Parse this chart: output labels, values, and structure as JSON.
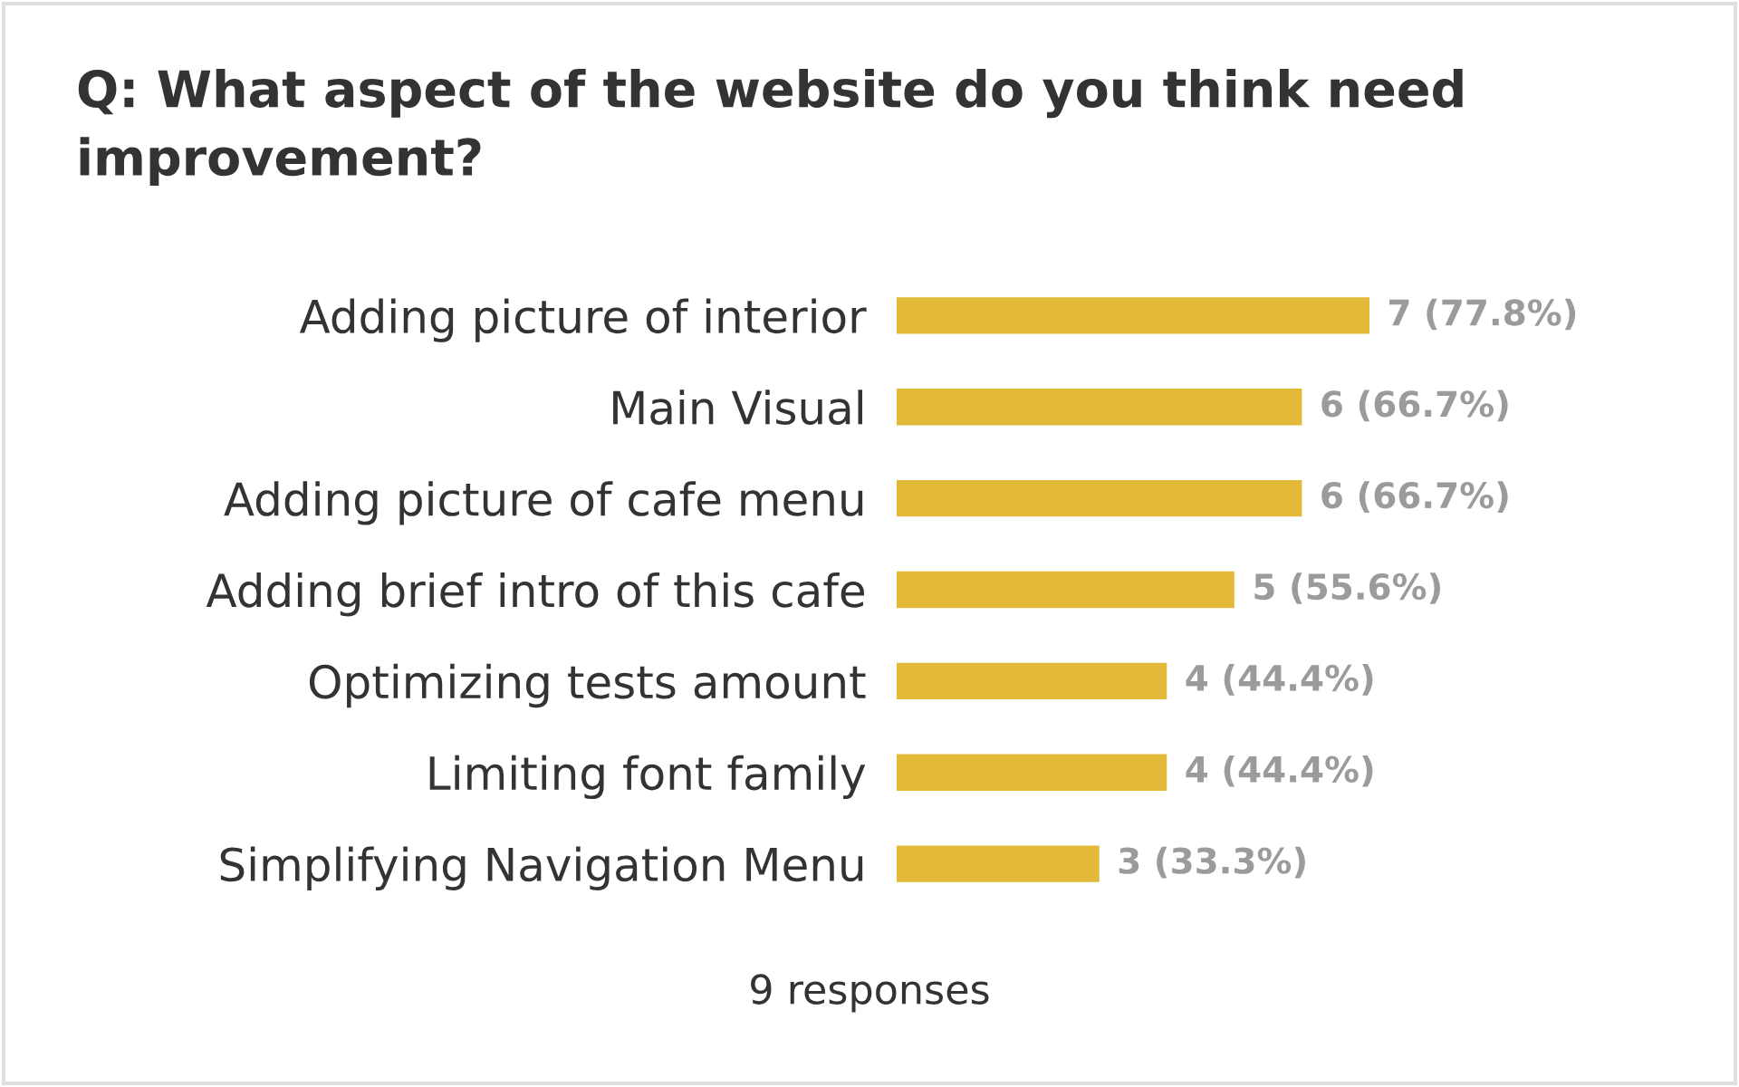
{
  "chart_data": {
    "type": "bar",
    "orientation": "horizontal",
    "title": "Q: What aspect of the website do you think need improvement?",
    "categories": [
      "Adding picture of interior",
      "Main Visual",
      "Adding picture of cafe menu",
      "Adding brief intro of this cafe",
      "Optimizing tests amount",
      "Limiting font family",
      "Simplifying Navigation Menu"
    ],
    "values": [
      7,
      6,
      6,
      5,
      4,
      4,
      3
    ],
    "value_labels": [
      "7 (77.8%)",
      "6 (66.7%)",
      "6 (66.7%)",
      "5 (55.6%)",
      "4 (44.4%)",
      "4 (44.4%)",
      "3 (33.3%)"
    ],
    "color": "#e2b938",
    "tick_labels": "y",
    "annotations": [
      "9 responses"
    ]
  }
}
